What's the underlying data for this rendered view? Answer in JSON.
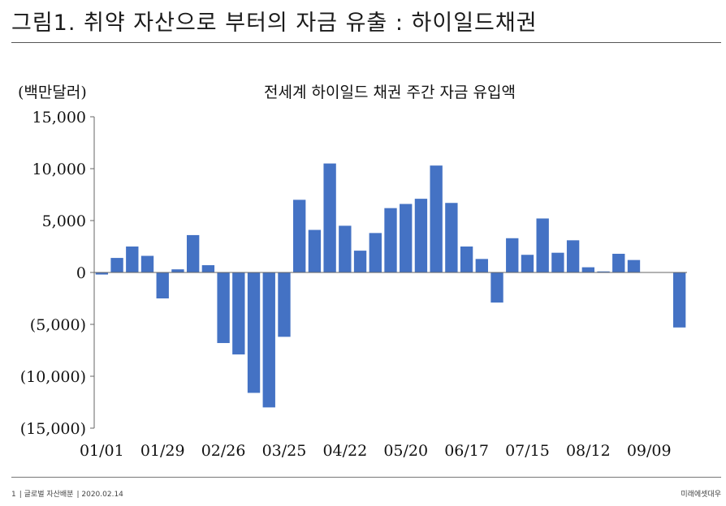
{
  "page": {
    "title": "그림1. 취약 자산으로 부터의 자금 유출 : 하이일드채권"
  },
  "footer": {
    "page_number": "1",
    "report_name": "글로벌 자산배분",
    "date": "2020.02.14",
    "company": "미래에셋대우"
  },
  "chart_data": {
    "type": "bar",
    "title": "전세계 하이일드 채권 주간 자금 유입액",
    "ylabel": "(백만달러)",
    "xlabel": "",
    "ylim": [
      -15000,
      15000
    ],
    "yticks": [
      15000,
      10000,
      5000,
      0,
      -5000,
      -10000,
      -15000
    ],
    "ytick_labels": [
      "15,000",
      "10,000",
      "5,000",
      "0",
      "(5,000)",
      "(10,000)",
      "(15,000)"
    ],
    "xtick_labels": [
      "01/01",
      "01/29",
      "02/26",
      "03/25",
      "04/22",
      "05/20",
      "06/17",
      "07/15",
      "08/12",
      "09/09"
    ],
    "xtick_every": 4,
    "bar_color": "#4472c4",
    "grid": false,
    "values": [
      -200,
      1400,
      2500,
      1600,
      -2500,
      300,
      3600,
      700,
      -6800,
      -7900,
      -11600,
      -13000,
      -6200,
      7000,
      4100,
      10500,
      4500,
      2100,
      3800,
      6200,
      6600,
      7100,
      10300,
      6700,
      2500,
      1300,
      -2900,
      3300,
      1700,
      5200,
      1900,
      3100,
      500,
      100,
      1800,
      1200,
      0,
      0,
      -5300
    ]
  }
}
